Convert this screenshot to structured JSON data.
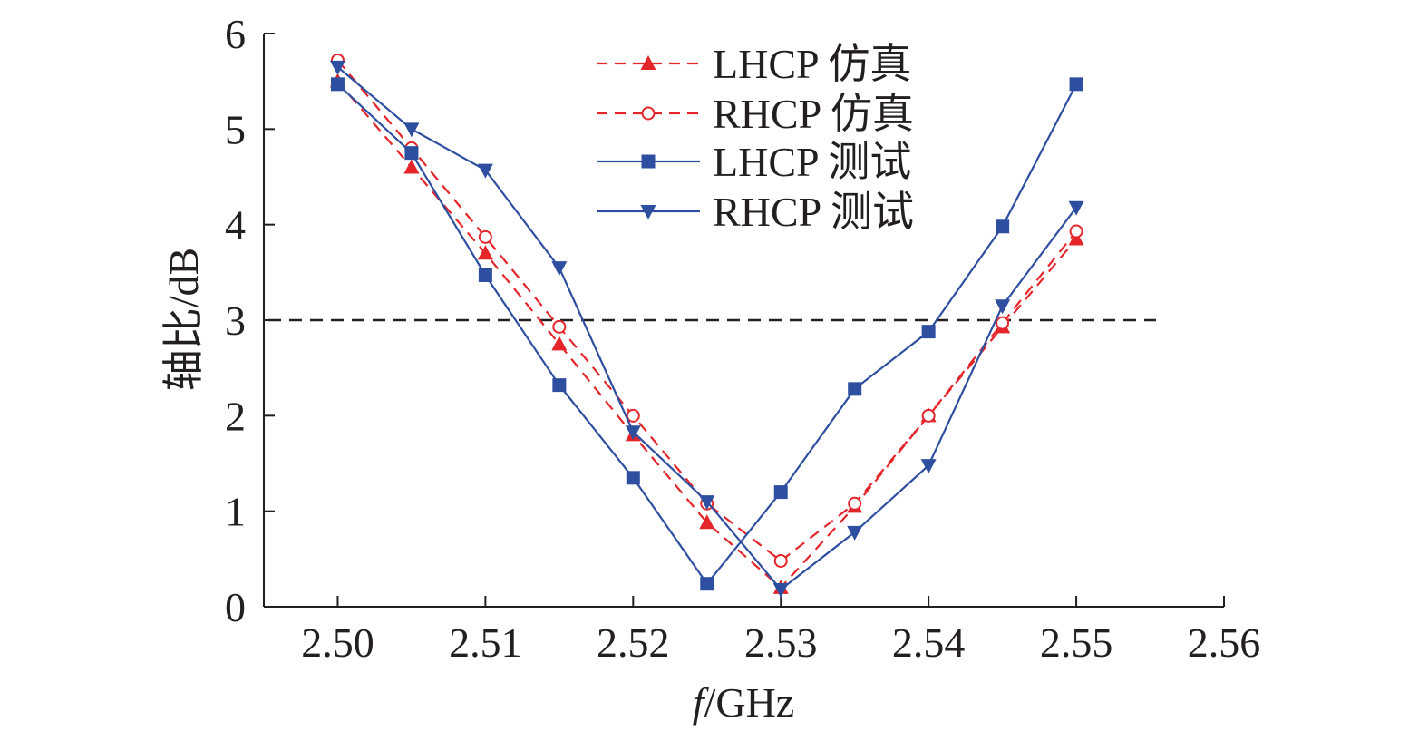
{
  "chart_data": {
    "type": "line",
    "title": "",
    "xlabel_italic": "f",
    "xlabel_rest": "/GHz",
    "ylabel": "轴比/dB",
    "xlim": [
      2.495,
      2.56
    ],
    "ylim": [
      0,
      6
    ],
    "x_ticks": [
      2.5,
      2.51,
      2.52,
      2.53,
      2.54,
      2.55,
      2.56
    ],
    "x_tick_labels": [
      "2.50",
      "2.51",
      "2.52",
      "2.53",
      "2.54",
      "2.55",
      "2.56"
    ],
    "y_ticks": [
      0,
      1,
      2,
      3,
      4,
      5,
      6
    ],
    "y_tick_labels": [
      "0",
      "1",
      "2",
      "3",
      "4",
      "5",
      "6"
    ],
    "grid": false,
    "legend_position": "top-center",
    "reference_line": {
      "y": 3,
      "style": "dashed",
      "color": "#231f20"
    },
    "x": [
      2.5,
      2.505,
      2.51,
      2.515,
      2.52,
      2.525,
      2.53,
      2.535,
      2.54,
      2.545,
      2.55
    ],
    "series": [
      {
        "name": "LHCP 仿真",
        "color": "#e4262b",
        "line_style": "dashed",
        "marker": "triangle-up",
        "values": [
          5.5,
          4.6,
          3.7,
          2.75,
          1.8,
          0.88,
          0.2,
          1.05,
          2.0,
          2.93,
          3.85
        ]
      },
      {
        "name": "RHCP 仿真",
        "color": "#e4262b",
        "line_style": "dashed",
        "marker": "circle-open",
        "values": [
          5.72,
          4.8,
          3.87,
          2.93,
          2.0,
          1.08,
          0.48,
          1.08,
          2.0,
          2.97,
          3.93
        ]
      },
      {
        "name": "LHCP 测试",
        "color": "#2e4fa0",
        "line_style": "solid",
        "marker": "square",
        "values": [
          5.47,
          4.75,
          3.47,
          2.32,
          1.35,
          0.24,
          1.2,
          2.28,
          2.88,
          3.98,
          5.47
        ]
      },
      {
        "name": "RHCP 测试",
        "color": "#2e4fa0",
        "line_style": "solid",
        "marker": "triangle-down",
        "values": [
          5.65,
          5.0,
          4.57,
          3.55,
          1.83,
          1.1,
          0.18,
          0.78,
          1.48,
          3.15,
          4.18
        ]
      }
    ]
  }
}
